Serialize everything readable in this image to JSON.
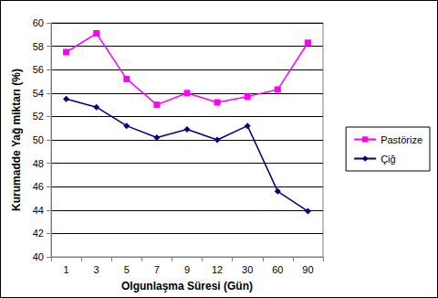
{
  "chart_data": {
    "type": "line",
    "x_label": "Olgunlaşma Süresi (Gün)",
    "y_label": "Kurumadde Yağ miktarı (%)",
    "categories": [
      "1",
      "3",
      "5",
      "7",
      "9",
      "12",
      "30",
      "60",
      "90"
    ],
    "series": [
      {
        "name": "Pastörize",
        "color": "#ff00ff",
        "marker": "square",
        "values": [
          57.5,
          59.1,
          55.2,
          53.0,
          54.0,
          53.2,
          53.7,
          54.3,
          58.3
        ]
      },
      {
        "name": "Çiğ",
        "color": "#000080",
        "marker": "diamond",
        "values": [
          53.5,
          52.8,
          51.2,
          50.2,
          50.9,
          50.0,
          51.2,
          45.6,
          43.9
        ]
      }
    ],
    "ylim": [
      40,
      60
    ],
    "yticks": [
      40,
      42,
      44,
      46,
      48,
      50,
      52,
      54,
      56,
      58,
      60
    ],
    "grid": true,
    "legend": "right"
  }
}
